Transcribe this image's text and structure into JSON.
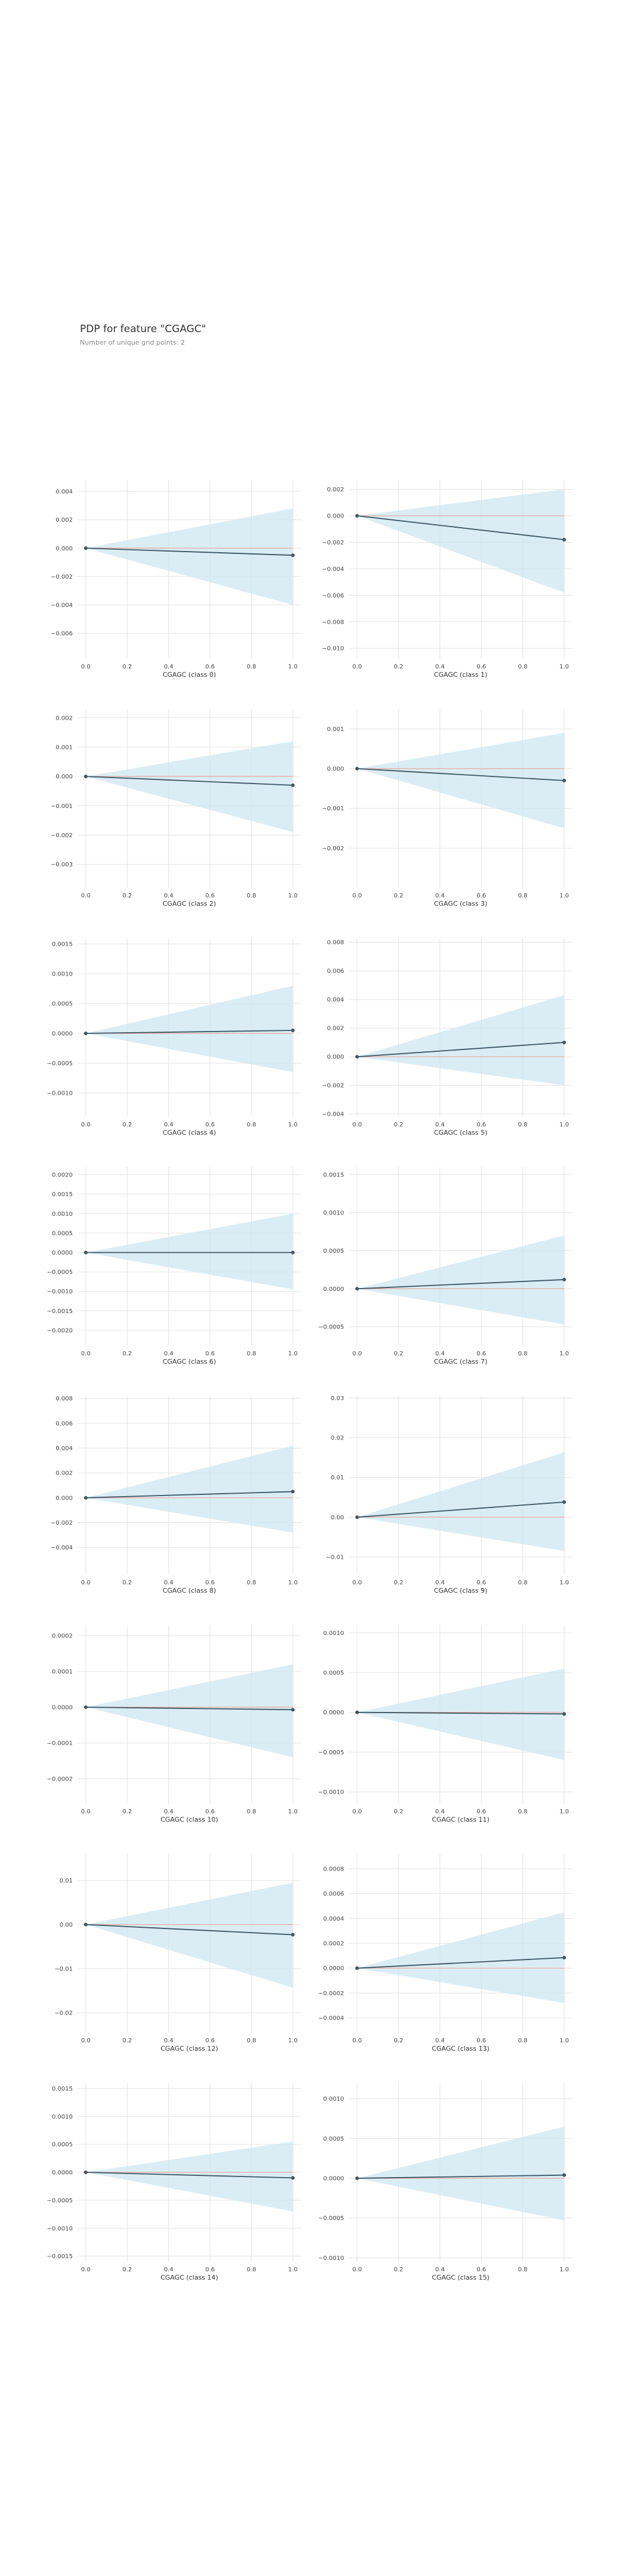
{
  "header": {
    "title": "PDP for feature \"CGAGC\"",
    "subtitle": "Number of unique grid points: 2"
  },
  "colors": {
    "line": "#3b5563",
    "band": "#cfe7f0",
    "baseline": "#e8a7a0",
    "grid": "#e3e3e3",
    "marker": "#3b5563"
  },
  "layout_info": {
    "columns": 2,
    "rows": 8,
    "panels_per_row": 2
  },
  "chart_data": [
    {
      "type": "line",
      "xlabel": "CGAGC (class 0)",
      "x": [
        0.0,
        1.0
      ],
      "y": [
        0.0,
        -0.0005
      ],
      "band_upper": [
        0.0,
        0.0028
      ],
      "band_lower": [
        0.0,
        -0.004
      ],
      "ylim": [
        -0.0078,
        0.0048
      ],
      "yticks": [
        0.004,
        0.002,
        0.0,
        -0.002,
        -0.004,
        -0.006
      ],
      "yticklabels": [
        "0.004",
        "0.002",
        "0.000",
        "−0.002",
        "−0.004",
        "−0.006"
      ],
      "xticks": [
        0.0,
        0.2,
        0.4,
        0.6,
        0.8,
        1.0
      ],
      "xticklabels": [
        "0.0",
        "0.2",
        "0.4",
        "0.6",
        "0.8",
        "1.0"
      ]
    },
    {
      "type": "line",
      "xlabel": "CGAGC (class 1)",
      "x": [
        0.0,
        1.0
      ],
      "y": [
        0.0,
        -0.0018
      ],
      "band_upper": [
        0.0,
        0.002
      ],
      "band_lower": [
        0.0,
        -0.0058
      ],
      "ylim": [
        -0.0108,
        0.0027
      ],
      "yticks": [
        0.002,
        0.0,
        -0.002,
        -0.004,
        -0.006,
        -0.008,
        -0.01
      ],
      "yticklabels": [
        "0.002",
        "0.000",
        "−0.002",
        "−0.004",
        "−0.006",
        "−0.008",
        "−0.010"
      ],
      "xticks": [
        0.0,
        0.2,
        0.4,
        0.6,
        0.8,
        1.0
      ],
      "xticklabels": [
        "0.0",
        "0.2",
        "0.4",
        "0.6",
        "0.8",
        "1.0"
      ]
    },
    {
      "type": "line",
      "xlabel": "CGAGC (class 2)",
      "x": [
        0.0,
        1.0
      ],
      "y": [
        0.0,
        -0.0003
      ],
      "band_upper": [
        0.0,
        0.0012
      ],
      "band_lower": [
        0.0,
        -0.0019
      ],
      "ylim": [
        -0.0038,
        0.0023
      ],
      "yticks": [
        0.002,
        0.001,
        0.0,
        -0.001,
        -0.002,
        -0.003
      ],
      "yticklabels": [
        "0.002",
        "0.001",
        "0.000",
        "−0.001",
        "−0.002",
        "−0.003"
      ],
      "xticks": [
        0.0,
        0.2,
        0.4,
        0.6,
        0.8,
        1.0
      ],
      "xticklabels": [
        "0.0",
        "0.2",
        "0.4",
        "0.6",
        "0.8",
        "1.0"
      ]
    },
    {
      "type": "line",
      "xlabel": "CGAGC (class 3)",
      "x": [
        0.0,
        1.0
      ],
      "y": [
        0.0,
        -0.0003
      ],
      "band_upper": [
        0.0,
        0.0009
      ],
      "band_lower": [
        0.0,
        -0.0015
      ],
      "ylim": [
        -0.003,
        0.0015
      ],
      "yticks": [
        0.001,
        0.0,
        -0.001,
        -0.002
      ],
      "yticklabels": [
        "0.001",
        "0.000",
        "−0.001",
        "−0.002"
      ],
      "xticks": [
        0.0,
        0.2,
        0.4,
        0.6,
        0.8,
        1.0
      ],
      "xticklabels": [
        "0.0",
        "0.2",
        "0.4",
        "0.6",
        "0.8",
        "1.0"
      ]
    },
    {
      "type": "line",
      "xlabel": "CGAGC (class 4)",
      "x": [
        0.0,
        1.0
      ],
      "y": [
        0.0,
        5e-05
      ],
      "band_upper": [
        0.0,
        0.0008
      ],
      "band_lower": [
        0.0,
        -0.00065
      ],
      "ylim": [
        -0.0014,
        0.0016
      ],
      "yticks": [
        0.0015,
        0.001,
        0.0005,
        0.0,
        -0.0005,
        -0.001
      ],
      "yticklabels": [
        "0.0015",
        "0.0010",
        "0.0005",
        "0.0000",
        "−0.0005",
        "−0.0010"
      ],
      "xticks": [
        0.0,
        0.2,
        0.4,
        0.6,
        0.8,
        1.0
      ],
      "xticklabels": [
        "0.0",
        "0.2",
        "0.4",
        "0.6",
        "0.8",
        "1.0"
      ]
    },
    {
      "type": "line",
      "xlabel": "CGAGC (class 5)",
      "x": [
        0.0,
        1.0
      ],
      "y": [
        0.0,
        0.001
      ],
      "band_upper": [
        0.0,
        0.0043
      ],
      "band_lower": [
        0.0,
        -0.002
      ],
      "ylim": [
        -0.0042,
        0.0083
      ],
      "yticks": [
        0.008,
        0.006,
        0.004,
        0.002,
        0.0,
        -0.002,
        -0.004
      ],
      "yticklabels": [
        "0.008",
        "0.006",
        "0.004",
        "0.002",
        "0.000",
        "−0.002",
        "−0.004"
      ],
      "xticks": [
        0.0,
        0.2,
        0.4,
        0.6,
        0.8,
        1.0
      ],
      "xticklabels": [
        "0.0",
        "0.2",
        "0.4",
        "0.6",
        "0.8",
        "1.0"
      ]
    },
    {
      "type": "line",
      "xlabel": "CGAGC (class 6)",
      "x": [
        0.0,
        1.0
      ],
      "y": [
        0.0,
        0.0
      ],
      "band_upper": [
        0.0,
        0.001
      ],
      "band_lower": [
        0.0,
        -0.00095
      ],
      "ylim": [
        -0.0024,
        0.0022
      ],
      "yticks": [
        0.002,
        0.0015,
        0.001,
        0.0005,
        0.0,
        -0.0005,
        -0.001,
        -0.0015,
        -0.002
      ],
      "yticklabels": [
        "0.0020",
        "0.0015",
        "0.0010",
        "0.0005",
        "0.0000",
        "−0.0005",
        "−0.0010",
        "−0.0015",
        "−0.0020"
      ],
      "xticks": [
        0.0,
        0.2,
        0.4,
        0.6,
        0.8,
        1.0
      ],
      "xticklabels": [
        "0.0",
        "0.2",
        "0.4",
        "0.6",
        "0.8",
        "1.0"
      ]
    },
    {
      "type": "line",
      "xlabel": "CGAGC (class 7)",
      "x": [
        0.0,
        1.0
      ],
      "y": [
        0.0,
        0.00012
      ],
      "band_upper": [
        0.0,
        0.0007
      ],
      "band_lower": [
        0.0,
        -0.00047
      ],
      "ylim": [
        -0.00075,
        0.0016
      ],
      "yticks": [
        0.0015,
        0.001,
        0.0005,
        0.0,
        -0.0005
      ],
      "yticklabels": [
        "0.0015",
        "0.0010",
        "0.0005",
        "0.0000",
        "−0.0005"
      ],
      "xticks": [
        0.0,
        0.2,
        0.4,
        0.6,
        0.8,
        1.0
      ],
      "xticklabels": [
        "0.0",
        "0.2",
        "0.4",
        "0.6",
        "0.8",
        "1.0"
      ]
    },
    {
      "type": "line",
      "xlabel": "CGAGC (class 8)",
      "x": [
        0.0,
        1.0
      ],
      "y": [
        0.0,
        0.0005
      ],
      "band_upper": [
        0.0,
        0.0042
      ],
      "band_lower": [
        0.0,
        -0.0028
      ],
      "ylim": [
        -0.0062,
        0.0082
      ],
      "yticks": [
        0.008,
        0.006,
        0.004,
        0.002,
        0.0,
        -0.002,
        -0.004
      ],
      "yticklabels": [
        "0.008",
        "0.006",
        "0.004",
        "0.002",
        "0.000",
        "−0.002",
        "−0.004"
      ],
      "xticks": [
        0.0,
        0.2,
        0.4,
        0.6,
        0.8,
        1.0
      ],
      "xticklabels": [
        "0.0",
        "0.2",
        "0.4",
        "0.6",
        "0.8",
        "1.0"
      ]
    },
    {
      "type": "line",
      "xlabel": "CGAGC (class 9)",
      "x": [
        0.0,
        1.0
      ],
      "y": [
        0.0,
        0.0038
      ],
      "band_upper": [
        0.0,
        0.0163
      ],
      "band_lower": [
        0.0,
        -0.0085
      ],
      "ylim": [
        -0.0145,
        0.0305
      ],
      "yticks": [
        0.03,
        0.02,
        0.01,
        0.0,
        -0.01
      ],
      "yticklabels": [
        "0.03",
        "0.02",
        "0.01",
        "0.00",
        "−0.01"
      ],
      "xticks": [
        0.0,
        0.2,
        0.4,
        0.6,
        0.8,
        1.0
      ],
      "xticklabels": [
        "0.0",
        "0.2",
        "0.4",
        "0.6",
        "0.8",
        "1.0"
      ]
    },
    {
      "type": "line",
      "xlabel": "CGAGC (class 10)",
      "x": [
        0.0,
        1.0
      ],
      "y": [
        0.0,
        -7e-06
      ],
      "band_upper": [
        0.0,
        0.00012
      ],
      "band_lower": [
        0.0,
        -0.00014
      ],
      "ylim": [
        -0.00027,
        0.00023
      ],
      "yticks": [
        0.0002,
        0.0001,
        0.0,
        -0.0001,
        -0.0002
      ],
      "yticklabels": [
        "0.0002",
        "0.0001",
        "0.0000",
        "−0.0001",
        "−0.0002"
      ],
      "xticks": [
        0.0,
        0.2,
        0.4,
        0.6,
        0.8,
        1.0
      ],
      "xticklabels": [
        "0.0",
        "0.2",
        "0.4",
        "0.6",
        "0.8",
        "1.0"
      ]
    },
    {
      "type": "line",
      "xlabel": "CGAGC (class 11)",
      "x": [
        0.0,
        1.0
      ],
      "y": [
        0.0,
        -2e-05
      ],
      "band_upper": [
        0.0,
        0.00055
      ],
      "band_lower": [
        0.0,
        -0.0006
      ],
      "ylim": [
        -0.00115,
        0.0011
      ],
      "yticks": [
        0.001,
        0.0005,
        0.0,
        -0.0005,
        -0.001
      ],
      "yticklabels": [
        "0.0010",
        "0.0005",
        "0.0000",
        "−0.0005",
        "−0.0010"
      ],
      "xticks": [
        0.0,
        0.2,
        0.4,
        0.6,
        0.8,
        1.0
      ],
      "xticklabels": [
        "0.0",
        "0.2",
        "0.4",
        "0.6",
        "0.8",
        "1.0"
      ]
    },
    {
      "type": "line",
      "xlabel": "CGAGC (class 12)",
      "x": [
        0.0,
        1.0
      ],
      "y": [
        0.0,
        -0.0023
      ],
      "band_upper": [
        0.0,
        0.0095
      ],
      "band_lower": [
        0.0,
        -0.0143
      ],
      "ylim": [
        -0.0245,
        0.016
      ],
      "yticks": [
        0.01,
        0.0,
        -0.01,
        -0.02
      ],
      "yticklabels": [
        "0.01",
        "0.00",
        "−0.01",
        "−0.02"
      ],
      "xticks": [
        0.0,
        0.2,
        0.4,
        0.6,
        0.8,
        1.0
      ],
      "xticklabels": [
        "0.0",
        "0.2",
        "0.4",
        "0.6",
        "0.8",
        "1.0"
      ]
    },
    {
      "type": "line",
      "xlabel": "CGAGC (class 13)",
      "x": [
        0.0,
        1.0
      ],
      "y": [
        0.0,
        8.5e-05
      ],
      "band_upper": [
        0.0,
        0.00045
      ],
      "band_lower": [
        0.0,
        -0.00028
      ],
      "ylim": [
        -0.00052,
        0.00092
      ],
      "yticks": [
        0.0008,
        0.0006,
        0.0004,
        0.0002,
        0.0,
        -0.0002,
        -0.0004
      ],
      "yticklabels": [
        "0.0008",
        "0.0006",
        "0.0004",
        "0.0002",
        "0.0000",
        "−0.0002",
        "−0.0004"
      ],
      "xticks": [
        0.0,
        0.2,
        0.4,
        0.6,
        0.8,
        1.0
      ],
      "xticklabels": [
        "0.0",
        "0.2",
        "0.4",
        "0.6",
        "0.8",
        "1.0"
      ]
    },
    {
      "type": "line",
      "xlabel": "CGAGC (class 14)",
      "x": [
        0.0,
        1.0
      ],
      "y": [
        0.0,
        -0.0001
      ],
      "band_upper": [
        0.0,
        0.00055
      ],
      "band_lower": [
        0.0,
        -0.0007
      ],
      "ylim": [
        -0.0016,
        0.0016
      ],
      "yticks": [
        0.0015,
        0.001,
        0.0005,
        0.0,
        -0.0005,
        -0.001,
        -0.0015
      ],
      "yticklabels": [
        "0.0015",
        "0.0010",
        "0.0005",
        "0.0000",
        "−0.0005",
        "−0.0010",
        "−0.0015"
      ],
      "xticks": [
        0.0,
        0.2,
        0.4,
        0.6,
        0.8,
        1.0
      ],
      "xticklabels": [
        "0.0",
        "0.2",
        "0.4",
        "0.6",
        "0.8",
        "1.0"
      ]
    },
    {
      "type": "line",
      "xlabel": "CGAGC (class 15)",
      "x": [
        0.0,
        1.0
      ],
      "y": [
        0.0,
        4e-05
      ],
      "band_upper": [
        0.0,
        0.00065
      ],
      "band_lower": [
        0.0,
        -0.00053
      ],
      "ylim": [
        -0.00105,
        0.0012
      ],
      "yticks": [
        0.001,
        0.0005,
        0.0,
        -0.0005,
        -0.001
      ],
      "yticklabels": [
        "0.0010",
        "0.0005",
        "0.0000",
        "−0.0005",
        "−0.0010"
      ],
      "xticks": [
        0.0,
        0.2,
        0.4,
        0.6,
        0.8,
        1.0
      ],
      "xticklabels": [
        "0.0",
        "0.2",
        "0.4",
        "0.6",
        "0.8",
        "1.0"
      ]
    }
  ]
}
